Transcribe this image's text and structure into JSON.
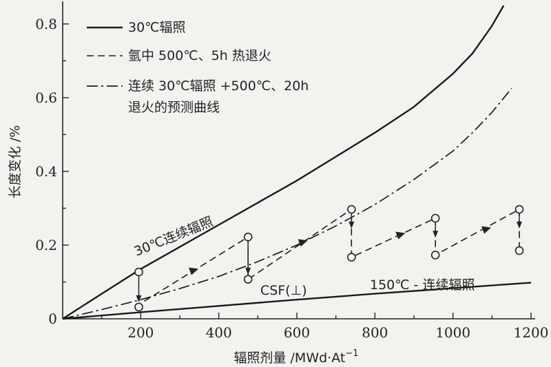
{
  "chart_data": {
    "type": "line",
    "title": "",
    "xlabel": "辐照剂量 /MWd·At",
    "xlabel_sup": "−1",
    "ylabel": "长度变化 /%",
    "xlim": [
      0,
      1200
    ],
    "ylim": [
      0,
      0.85
    ],
    "xticks": [
      "200",
      "400",
      "600",
      "800",
      "1000",
      "1200"
    ],
    "yticks": [
      "0",
      "0.2",
      "0.4",
      "0.6",
      "0.8"
    ],
    "legend": [
      {
        "label": "30℃辐照",
        "style": "solid"
      },
      {
        "label": "氩中 500℃、5h 热退火",
        "style": "dashed"
      },
      {
        "label": "连续 30℃辐照 +500℃、20h",
        "label2": "退火的预测曲线",
        "style": "dashdot"
      }
    ],
    "annotations": {
      "curve_30": "30℃连续辐照",
      "curve_150": "150℃ - 连续辐照",
      "csf": "CSF(⊥)"
    },
    "series": [
      {
        "style": "solid",
        "x": [
          0,
          100,
          200,
          300,
          400,
          500,
          600,
          700,
          800,
          900,
          1000,
          1050,
          1100,
          1130
        ],
        "y": [
          0,
          0.068,
          0.135,
          0.195,
          0.255,
          0.315,
          0.375,
          0.44,
          0.505,
          0.575,
          0.665,
          0.72,
          0.795,
          0.85
        ]
      },
      {
        "style": "solid",
        "x": [
          0,
          200,
          400,
          600,
          800,
          1000,
          1200
        ],
        "y": [
          0,
          0.018,
          0.035,
          0.052,
          0.068,
          0.083,
          0.098
        ]
      },
      {
        "style": "dashdot",
        "x": [
          0,
          100,
          200,
          300,
          400,
          500,
          600,
          700,
          800,
          900,
          1000,
          1050,
          1100,
          1150
        ],
        "y": [
          0,
          0.025,
          0.052,
          0.082,
          0.115,
          0.155,
          0.2,
          0.252,
          0.31,
          0.378,
          0.455,
          0.505,
          0.56,
          0.625
        ]
      },
      {
        "style": "dashed",
        "x": [
          185,
          475,
          475,
          740,
          740,
          955,
          955,
          1170,
          1170
        ],
        "y": [
          0.032,
          0.222,
          0.107,
          0.297,
          0.167,
          0.273,
          0.173,
          0.297,
          0.185
        ]
      }
    ],
    "markers": [
      {
        "x": 195,
        "y": 0.127
      },
      {
        "x": 195,
        "y": 0.032
      },
      {
        "x": 475,
        "y": 0.222
      },
      {
        "x": 475,
        "y": 0.107
      },
      {
        "x": 740,
        "y": 0.297
      },
      {
        "x": 740,
        "y": 0.167
      },
      {
        "x": 955,
        "y": 0.273
      },
      {
        "x": 955,
        "y": 0.173
      },
      {
        "x": 1170,
        "y": 0.297
      },
      {
        "x": 1170,
        "y": 0.185
      }
    ],
    "down_arrows": [
      {
        "x": 195,
        "y_from": 0.115,
        "y_to": 0.045
      },
      {
        "x": 475,
        "y_from": 0.21,
        "y_to": 0.12
      },
      {
        "x": 740,
        "y_from": 0.285,
        "y_to": 0.245
      },
      {
        "x": 955,
        "y_from": 0.262,
        "y_to": 0.22
      },
      {
        "x": 1170,
        "y_from": 0.285,
        "y_to": 0.245
      }
    ],
    "up_arrows": [
      {
        "x": 330,
        "y": 0.128
      },
      {
        "x": 610,
        "y": 0.205
      },
      {
        "x": 860,
        "y": 0.225
      },
      {
        "x": 1080,
        "y": 0.24
      }
    ],
    "grid": false
  }
}
